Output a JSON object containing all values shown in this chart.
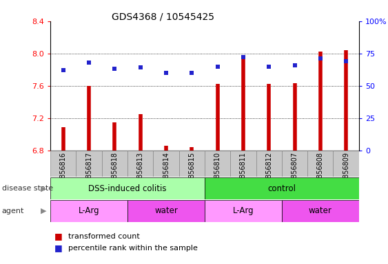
{
  "title": "GDS4368 / 10545425",
  "samples": [
    "GSM856816",
    "GSM856817",
    "GSM856818",
    "GSM856813",
    "GSM856814",
    "GSM856815",
    "GSM856810",
    "GSM856811",
    "GSM856812",
    "GSM856807",
    "GSM856808",
    "GSM856809"
  ],
  "red_values": [
    7.09,
    7.6,
    7.15,
    7.25,
    6.86,
    6.84,
    7.62,
    7.95,
    7.62,
    7.63,
    8.02,
    8.04
  ],
  "blue_values": [
    62,
    68,
    63,
    64,
    60,
    60,
    65,
    72,
    65,
    66,
    71,
    69
  ],
  "ylim_left": [
    6.8,
    8.4
  ],
  "ylim_right": [
    0,
    100
  ],
  "yticks_left": [
    6.8,
    7.2,
    7.6,
    8.0,
    8.4
  ],
  "yticks_right": [
    0,
    25,
    50,
    75,
    100
  ],
  "disease_state_groups": [
    {
      "label": "DSS-induced colitis",
      "start": 0,
      "end": 6,
      "color": "#AAFFAA"
    },
    {
      "label": "control",
      "start": 6,
      "end": 12,
      "color": "#44DD44"
    }
  ],
  "agent_groups": [
    {
      "label": "L-Arg",
      "start": 0,
      "end": 3,
      "color": "#FF99FF"
    },
    {
      "label": "water",
      "start": 3,
      "end": 6,
      "color": "#EE55EE"
    },
    {
      "label": "L-Arg",
      "start": 6,
      "end": 9,
      "color": "#FF99FF"
    },
    {
      "label": "water",
      "start": 9,
      "end": 12,
      "color": "#EE55EE"
    }
  ],
  "bar_color": "#CC0000",
  "dot_color": "#2222CC",
  "tick_bg_color": "#C8C8C8",
  "plot_bg": "#FFFFFF",
  "label_disease_state": "disease state",
  "label_agent": "agent",
  "legend_red": "transformed count",
  "legend_blue": "percentile rank within the sample",
  "grid_dotted_at": [
    7.2,
    7.6,
    8.0
  ],
  "bar_linewidth": 4.0,
  "dot_size": 5
}
